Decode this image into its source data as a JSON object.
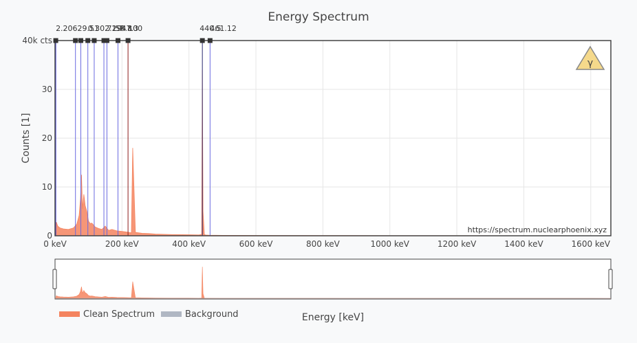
{
  "chart_data": {
    "type": "area",
    "title": "Energy Spectrum",
    "xlabel": "Energy [keV]",
    "ylabel": "Counts [1]",
    "x_unit": "keV",
    "xlim": [
      0,
      1660
    ],
    "ylim": [
      0,
      40000
    ],
    "x_ticks": [
      0,
      200,
      400,
      600,
      800,
      1000,
      1200,
      1400,
      1600
    ],
    "x_tick_labels": [
      "0 keV",
      "200 keV",
      "400 keV",
      "600 keV",
      "800 keV",
      "1000 keV",
      "1200 keV",
      "1400 keV",
      "1600 keV"
    ],
    "y_ticks": [
      0,
      10000,
      20000,
      30000,
      40000
    ],
    "y_tick_labels": [
      "0",
      "10",
      "20",
      "30",
      "40k cts"
    ],
    "grid": true,
    "legend_position": "bottom-left",
    "watermark": "https://spectrum.nuclearphoenix.xyz",
    "series": [
      {
        "name": "Clean Spectrum",
        "color": "#f4845f",
        "x": [
          0,
          2,
          4,
          8,
          15,
          25,
          40,
          55,
          65,
          72,
          76,
          79,
          82,
          86,
          90,
          95,
          100,
          105,
          110,
          115,
          120,
          130,
          140,
          150,
          160,
          170,
          185,
          200,
          210,
          220,
          228,
          232,
          240,
          260,
          280,
          300,
          350,
          400,
          430,
          438,
          440,
          442,
          446,
          450,
          460,
          500,
          600,
          800,
          1000,
          1200,
          1400,
          1600,
          1660
        ],
        "values": [
          0,
          500,
          2800,
          2000,
          1600,
          1400,
          1300,
          1600,
          2400,
          4200,
          7500,
          12500,
          5500,
          8500,
          6200,
          5000,
          3000,
          2500,
          2600,
          2200,
          1800,
          1500,
          1300,
          2000,
          1100,
          1300,
          1000,
          900,
          800,
          700,
          600,
          18000,
          700,
          500,
          450,
          350,
          250,
          200,
          180,
          300,
          34000,
          5000,
          250,
          150,
          120,
          90,
          70,
          50,
          40,
          30,
          20,
          10,
          0
        ]
      },
      {
        "name": "Background",
        "color": "#b0b7c3",
        "x": [
          0,
          1660
        ],
        "values": [
          0,
          0
        ]
      }
    ],
    "markers": [
      {
        "x": 2.2,
        "label": "2.206",
        "color": "#3b3bd9"
      },
      {
        "x": 61,
        "label": "",
        "color": "#6a6ae0"
      },
      {
        "x": 77,
        "label": "",
        "color": "#6a6ae0"
      },
      {
        "x": 98,
        "label": "",
        "color": "#6a6ae0"
      },
      {
        "x": 117,
        "label": "",
        "color": "#6a6ae0"
      },
      {
        "x": 146,
        "label": "",
        "color": "#6a6ae0"
      },
      {
        "x": 155,
        "label": "",
        "color": "#6a6ae0"
      },
      {
        "x": 188,
        "label": "",
        "color": "#6a6ae0"
      },
      {
        "x": 218,
        "label": "",
        "color": "#8b1a1a"
      },
      {
        "x": 440,
        "label": "440.5",
        "color": "#2a2a6e"
      },
      {
        "x": 463,
        "label": "",
        "color": "#6a6ae0"
      }
    ],
    "marker_label_groups": [
      {
        "text": "2.20629.51",
        "anchor_x": 2.2
      },
      {
        "text": "0.302.2947.3",
        "anchor_x": 98
      },
      {
        "text": "71.7",
        "anchor_x": 155
      },
      {
        "text": "58.8",
        "anchor_x": 180
      },
      {
        "text": "100",
        "anchor_x": 218
      },
      {
        "text": "440.5",
        "anchor_x": 432
      },
      {
        "text": "461.12",
        "anchor_x": 463
      }
    ]
  },
  "ui": {
    "warning_icon": "radiation-warning-icon",
    "icon_symbol": "γ"
  }
}
